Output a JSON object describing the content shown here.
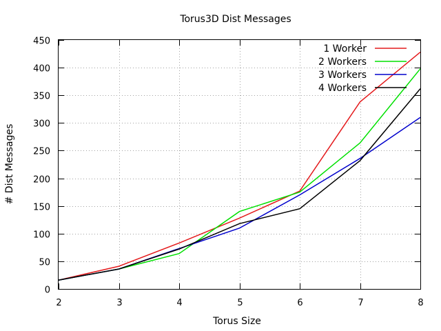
{
  "chart_data": {
    "type": "line",
    "title": "Torus3D Dist Messages",
    "xlabel": "Torus Size",
    "ylabel": "# Dist Messages",
    "x": [
      2,
      3,
      4,
      5,
      6,
      7,
      8
    ],
    "xlim": [
      2,
      8
    ],
    "ylim": [
      0,
      450
    ],
    "xticks": [
      2,
      3,
      4,
      5,
      6,
      7,
      8
    ],
    "yticks": [
      0,
      50,
      100,
      150,
      200,
      250,
      300,
      350,
      400,
      450
    ],
    "grid": true,
    "legend_position": "top-right",
    "series": [
      {
        "name": "1 Worker",
        "color": "#e41a1c",
        "values": [
          16,
          41,
          83,
          128,
          177,
          338,
          428
        ]
      },
      {
        "name": "2 Workers",
        "color": "#00e000",
        "values": [
          16,
          36,
          64,
          140,
          175,
          264,
          398
        ]
      },
      {
        "name": "3 Workers",
        "color": "#0000cc",
        "values": [
          16,
          36,
          73,
          110,
          170,
          236,
          310
        ]
      },
      {
        "name": "4 Workers",
        "color": "#000000",
        "values": [
          16,
          36,
          72,
          118,
          145,
          232,
          362
        ]
      }
    ]
  }
}
